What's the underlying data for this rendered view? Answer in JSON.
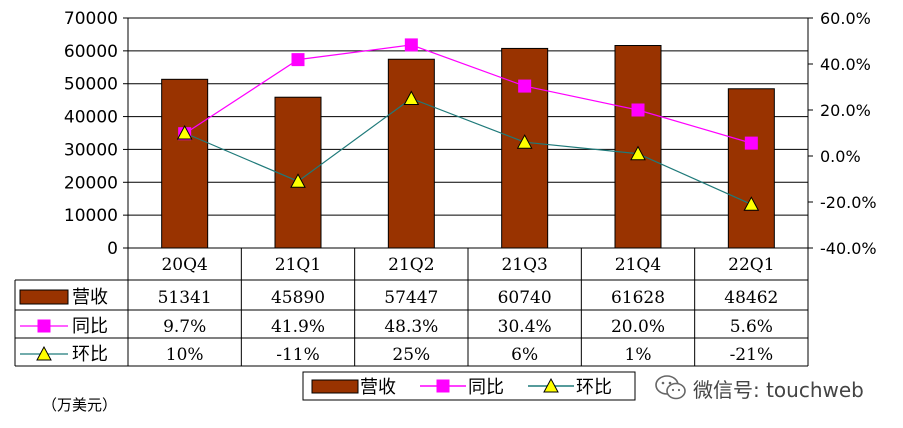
{
  "chart_data": {
    "type": "bar",
    "categories": [
      "20Q4",
      "21Q1",
      "21Q2",
      "21Q3",
      "21Q4",
      "22Q1"
    ],
    "series": [
      {
        "name": "营收",
        "type": "bar",
        "axis": "left",
        "values": [
          51341,
          45890,
          57447,
          60740,
          61628,
          48462
        ],
        "labels": [
          "51341",
          "45890",
          "57447",
          "60740",
          "61628",
          "48462"
        ],
        "color": "#993300"
      },
      {
        "name": "同比",
        "type": "line",
        "axis": "right",
        "values": [
          9.7,
          41.9,
          48.3,
          30.4,
          20.0,
          5.6
        ],
        "labels": [
          "9.7%",
          "41.9%",
          "48.3%",
          "30.4%",
          "20.0%",
          "5.6%"
        ],
        "color": "#ff00ff",
        "marker": "square"
      },
      {
        "name": "环比",
        "type": "line",
        "axis": "right",
        "values": [
          10,
          -11,
          25,
          6,
          1,
          -21
        ],
        "labels": [
          "10%",
          "-11%",
          "25%",
          "6%",
          "1%",
          "-21%"
        ],
        "color": "#1f7a7a",
        "marker": "triangle"
      }
    ],
    "ylim": [
      0,
      70000
    ],
    "y_ticks": [
      "70000",
      "60000",
      "50000",
      "40000",
      "30000",
      "20000",
      "10000",
      "0"
    ],
    "y2lim": [
      -40,
      60
    ],
    "y2_ticks": [
      "60.0%",
      "40.0%",
      "20.0%",
      "0.0%",
      "-20.0%",
      "-40.0%"
    ],
    "unit_label": "（万美元）",
    "grid": true,
    "legend_position": "bottom-center"
  },
  "watermark": {
    "text": "微信号: touchweb"
  }
}
